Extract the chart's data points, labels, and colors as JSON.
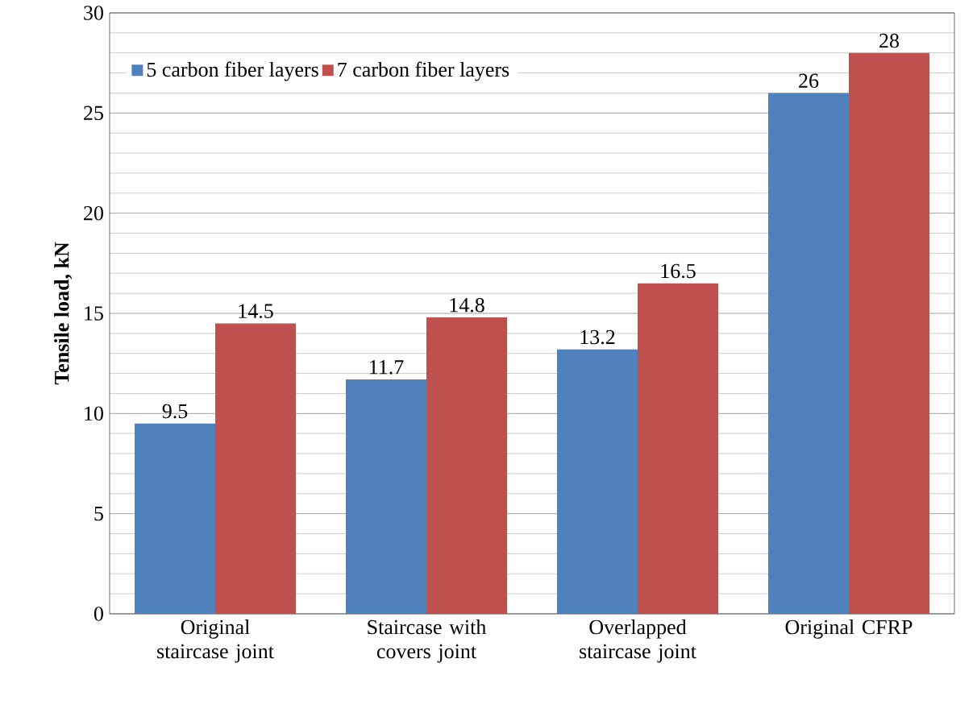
{
  "chart_data": {
    "type": "bar",
    "ylabel": "Tensile load, kN",
    "categories": [
      "Original staircase joint",
      "Staircase with covers joint",
      "Overlapped staircase joint",
      "Original CFRP"
    ],
    "series": [
      {
        "name": "5 carbon fiber layers",
        "color": "#4f81bd",
        "values": [
          9.5,
          11.7,
          13.2,
          26
        ]
      },
      {
        "name": "7 carbon fiber layers",
        "color": "#c0504d",
        "values": [
          14.5,
          14.8,
          16.5,
          28
        ]
      }
    ],
    "ylim": [
      0,
      30
    ],
    "yticks": [
      0,
      5,
      10,
      15,
      20,
      25,
      30
    ],
    "grid": "y",
    "legend": "top left",
    "data_labels": true
  }
}
